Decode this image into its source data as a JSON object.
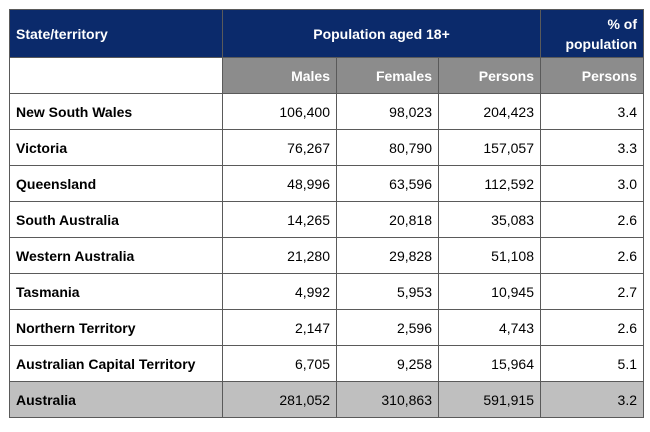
{
  "header": {
    "state_col": "State/territory",
    "group_col": "Population aged 18+",
    "pct_col": "% of population",
    "sub": [
      "Males",
      "Females",
      "Persons",
      "Persons"
    ]
  },
  "rows": [
    {
      "name": "New South Wales",
      "males": "106,400",
      "females": "98,023",
      "persons": "204,423",
      "pct": "3.4"
    },
    {
      "name": "Victoria",
      "males": "76,267",
      "females": "80,790",
      "persons": "157,057",
      "pct": "3.3"
    },
    {
      "name": "Queensland",
      "males": "48,996",
      "females": "63,596",
      "persons": "112,592",
      "pct": "3.0"
    },
    {
      "name": "South Australia",
      "males": "14,265",
      "females": "20,818",
      "persons": "35,083",
      "pct": "2.6"
    },
    {
      "name": "Western Australia",
      "males": "21,280",
      "females": "29,828",
      "persons": "51,108",
      "pct": "2.6"
    },
    {
      "name": "Tasmania",
      "males": "4,992",
      "females": "5,953",
      "persons": "10,945",
      "pct": "2.7"
    },
    {
      "name": "Northern Territory",
      "males": "2,147",
      "females": "2,596",
      "persons": "4,743",
      "pct": "2.6"
    },
    {
      "name": "Australian Capital Territory",
      "males": "6,705",
      "females": "9,258",
      "persons": "15,964",
      "pct": "5.1"
    }
  ],
  "total": {
    "name": "Australia",
    "males": "281,052",
    "females": "310,863",
    "persons": "591,915",
    "pct": "3.2"
  },
  "colors": {
    "header_bg": "#0b2a6b",
    "subheader_bg": "#8c8c8c",
    "total_bg": "#bfbfbf"
  }
}
